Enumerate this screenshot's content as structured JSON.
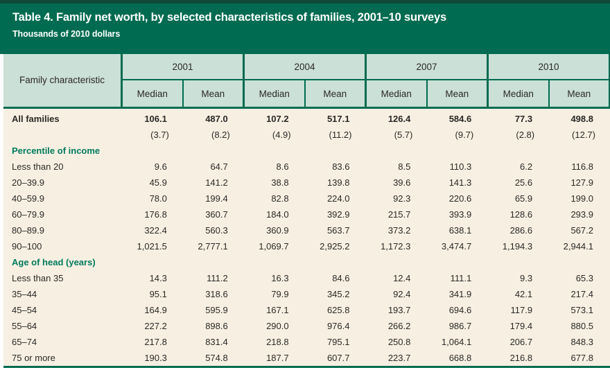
{
  "title_bar": {
    "title": "Table 4. Family net worth, by selected characteristics of families, 2001–10 surveys",
    "subtitle": "Thousands of 2010 dollars"
  },
  "chart_data": {
    "type": "table",
    "title": "Table 4. Family net worth, by selected characteristics of families, 2001–10 surveys",
    "units": "Thousands of 2010 dollars",
    "row_header_label": "Family characteristic",
    "column_groups": [
      "2001",
      "2004",
      "2007",
      "2010"
    ],
    "sub_columns": [
      "Median",
      "Mean"
    ],
    "rows": [
      {
        "style": "bold",
        "label": "All families",
        "values": [
          "106.1",
          "487.0",
          "107.2",
          "517.1",
          "126.4",
          "584.6",
          "77.3",
          "498.8"
        ]
      },
      {
        "style": "se",
        "label": "",
        "values": [
          "(3.7)",
          "(8.2)",
          "(4.9)",
          "(11.2)",
          "(5.7)",
          "(9.7)",
          "(2.8)",
          "(12.7)"
        ]
      },
      {
        "style": "section",
        "label": "Percentile of income",
        "values": [
          "",
          "",
          "",
          "",
          "",
          "",
          "",
          ""
        ]
      },
      {
        "style": "plain",
        "label": "Less than 20",
        "values": [
          "9.6",
          "64.7",
          "8.6",
          "83.6",
          "8.5",
          "110.3",
          "6.2",
          "116.8"
        ]
      },
      {
        "style": "plain",
        "label": "20–39.9",
        "values": [
          "45.9",
          "141.2",
          "38.8",
          "139.8",
          "39.6",
          "141.3",
          "25.6",
          "127.9"
        ]
      },
      {
        "style": "plain",
        "label": "40–59.9",
        "values": [
          "78.0",
          "199.4",
          "82.8",
          "224.0",
          "92.3",
          "220.6",
          "65.9",
          "199.0"
        ]
      },
      {
        "style": "plain",
        "label": "60–79.9",
        "values": [
          "176.8",
          "360.7",
          "184.0",
          "392.9",
          "215.7",
          "393.9",
          "128.6",
          "293.9"
        ]
      },
      {
        "style": "plain",
        "label": "80–89.9",
        "values": [
          "322.4",
          "560.3",
          "360.9",
          "563.7",
          "373.2",
          "638.1",
          "286.6",
          "567.2"
        ]
      },
      {
        "style": "plain",
        "label": "90–100",
        "values": [
          "1,021.5",
          "2,777.1",
          "1,069.7",
          "2,925.2",
          "1,172.3",
          "3,474.7",
          "1,194.3",
          "2,944.1"
        ]
      },
      {
        "style": "section",
        "label": "Age of head (years)",
        "values": [
          "",
          "",
          "",
          "",
          "",
          "",
          "",
          ""
        ]
      },
      {
        "style": "plain",
        "label": "Less than 35",
        "values": [
          "14.3",
          "111.2",
          "16.3",
          "84.6",
          "12.4",
          "111.1",
          "9.3",
          "65.3"
        ]
      },
      {
        "style": "plain",
        "label": "35–44",
        "values": [
          "95.1",
          "318.6",
          "79.9",
          "345.2",
          "92.4",
          "341.9",
          "42.1",
          "217.4"
        ]
      },
      {
        "style": "plain",
        "label": "45–54",
        "values": [
          "164.9",
          "595.9",
          "167.1",
          "625.8",
          "193.7",
          "694.6",
          "117.9",
          "573.1"
        ]
      },
      {
        "style": "plain",
        "label": "55–64",
        "values": [
          "227.2",
          "898.6",
          "290.0",
          "976.4",
          "266.2",
          "986.7",
          "179.4",
          "880.5"
        ]
      },
      {
        "style": "plain",
        "label": "65–74",
        "values": [
          "217.8",
          "831.4",
          "218.8",
          "795.1",
          "250.8",
          "1,064.1",
          "206.7",
          "848.3"
        ]
      },
      {
        "style": "plain",
        "label": "75 or more",
        "values": [
          "190.3",
          "574.8",
          "187.7",
          "607.7",
          "223.7",
          "668.8",
          "216.8",
          "677.8"
        ]
      }
    ]
  },
  "colors": {
    "header_green": "#006b50",
    "top_strip_green": "#0e4938",
    "column_header_bg": "#cbe0d7",
    "data_bg": "#f7f0e2",
    "section_label_green": "#007a5e",
    "text_dark": "#2b2826",
    "title_text": "#ffffff"
  }
}
